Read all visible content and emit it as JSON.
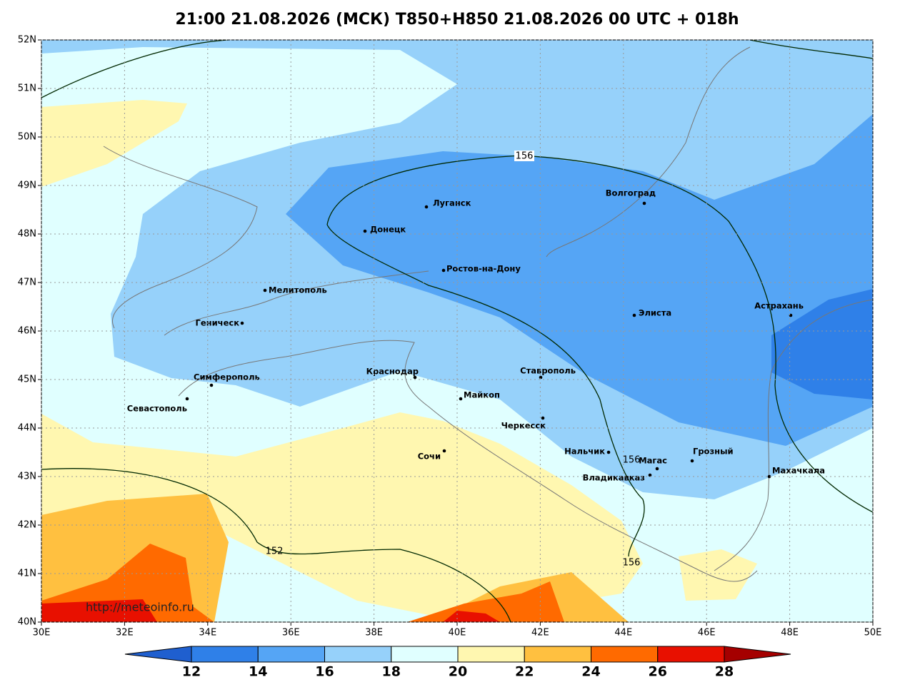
{
  "map": {
    "title": "21:00 21.08.2026 (МСК) T850+H850 21.08.2026 00 UTC + 018h",
    "source": "http://meteoinfo.ru",
    "lon_ticks": [
      {
        "value": 30,
        "label": "30E"
      },
      {
        "value": 32,
        "label": "32E"
      },
      {
        "value": 34,
        "label": "34E"
      },
      {
        "value": 36,
        "label": "36E"
      },
      {
        "value": 38,
        "label": "38E"
      },
      {
        "value": 40,
        "label": "40E"
      },
      {
        "value": 42,
        "label": "42E"
      },
      {
        "value": 44,
        "label": "44E"
      },
      {
        "value": 46,
        "label": "46E"
      },
      {
        "value": 48,
        "label": "48E"
      },
      {
        "value": 50,
        "label": "50E"
      }
    ],
    "lat_ticks": [
      {
        "value": 40,
        "label": "40N"
      },
      {
        "value": 41,
        "label": "41N"
      },
      {
        "value": 42,
        "label": "42N"
      },
      {
        "value": 43,
        "label": "43N"
      },
      {
        "value": 44,
        "label": "44N"
      },
      {
        "value": 45,
        "label": "45N"
      },
      {
        "value": 46,
        "label": "46N"
      },
      {
        "value": 47,
        "label": "47N"
      },
      {
        "value": 48,
        "label": "48N"
      },
      {
        "value": 49,
        "label": "49N"
      },
      {
        "value": 50,
        "label": "50N"
      },
      {
        "value": 51,
        "label": "51N"
      },
      {
        "value": 52,
        "label": "52N"
      }
    ],
    "lon_range": [
      30,
      50
    ],
    "lat_range": [
      40,
      52
    ],
    "colorbar": {
      "levels": [
        12,
        14,
        16,
        18,
        20,
        22,
        24,
        26,
        28
      ],
      "colors": [
        "#1f5fcf",
        "#2f80e8",
        "#55a5f5",
        "#96d1fa",
        "#e0ffff",
        "#fff7b0",
        "#ffc040",
        "#ff6a00",
        "#e81000",
        "#a50000"
      ]
    },
    "contour_labels": [
      156,
      152,
      156,
      156
    ],
    "cities": [
      "Луганск",
      "Донецк",
      "Волгоград",
      "Ростов-на-Дону",
      "Мелитополь",
      "Элиста",
      "Астрахань",
      "Геническ",
      "Симферополь",
      "Краснодар",
      "Ставрополь",
      "Майкоп",
      "Севастополь",
      "Черкесск",
      "Нальчик",
      "Грозный",
      "Магас",
      "Владикавказ",
      "Махачкала",
      "Сочи"
    ]
  }
}
